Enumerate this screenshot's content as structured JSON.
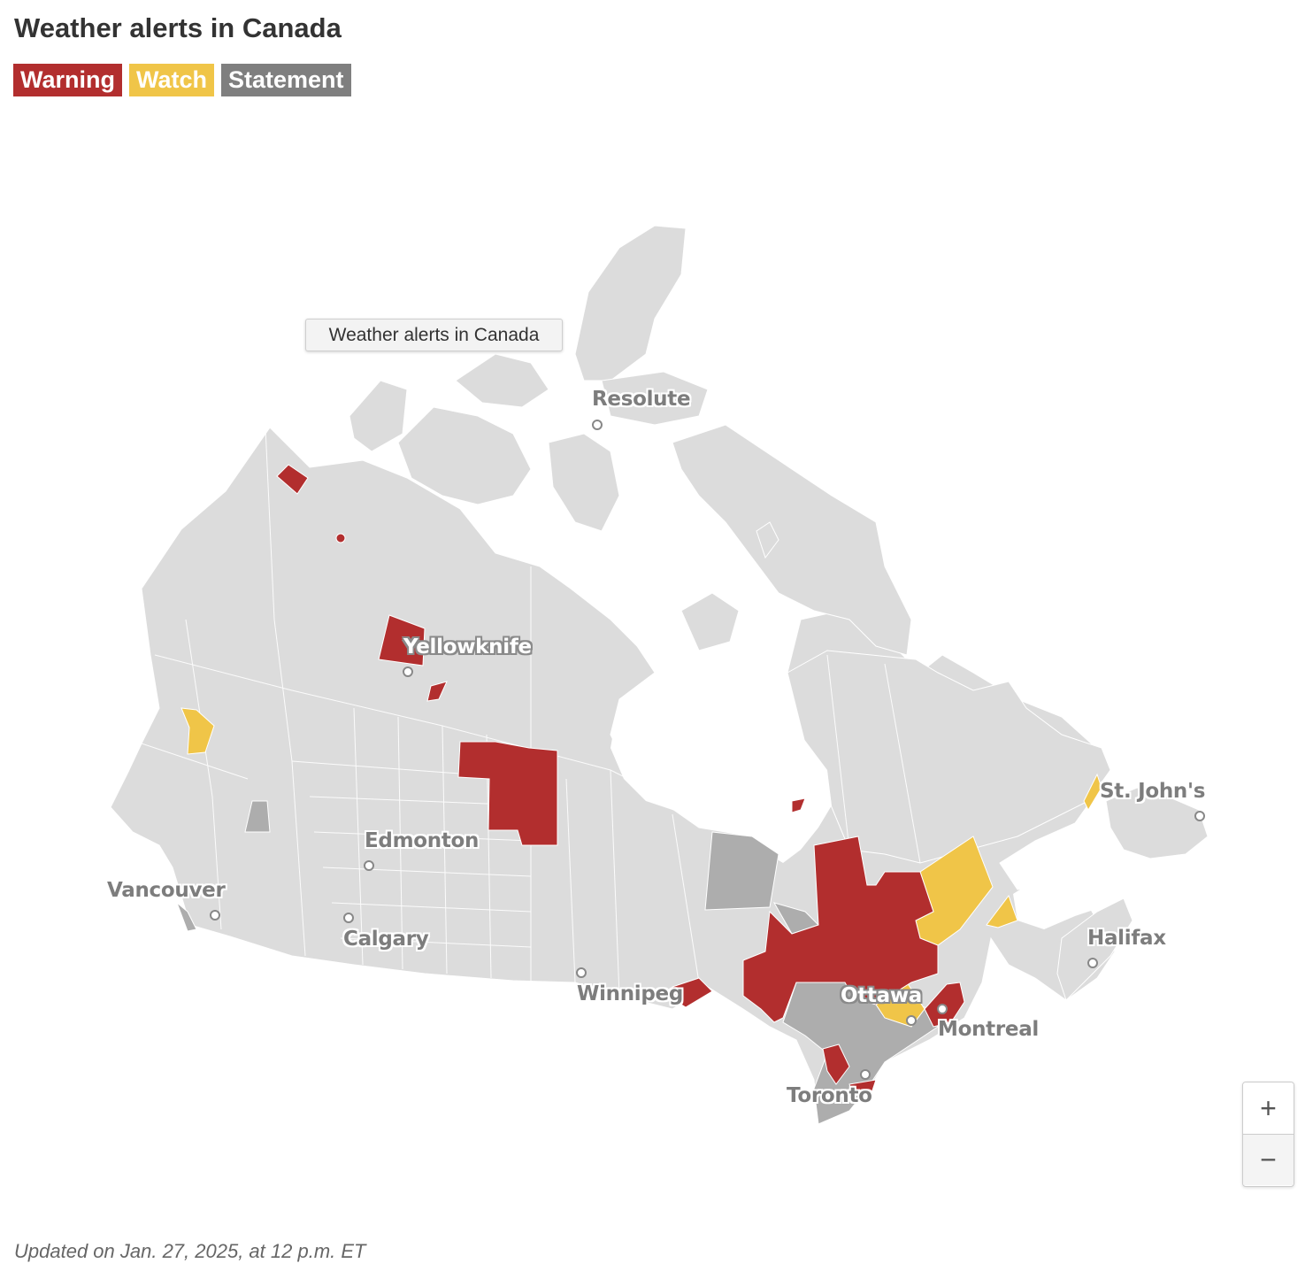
{
  "title": "Weather alerts in Canada",
  "legend": [
    {
      "label": "Warning",
      "color": "#b22e2e"
    },
    {
      "label": "Watch",
      "color": "#f0c548"
    },
    {
      "label": "Statement",
      "color": "#7f7f7f"
    }
  ],
  "tooltip": "Weather alerts in Canada",
  "map_colors": {
    "land": "#dcdcdc",
    "borders": "#ffffff",
    "warning": "#b22e2e",
    "watch": "#f0c548",
    "statement": "#adadad"
  },
  "cities": [
    {
      "name": "Resolute"
    },
    {
      "name": "Yellowknife"
    },
    {
      "name": "St. John's"
    },
    {
      "name": "Edmonton"
    },
    {
      "name": "Vancouver"
    },
    {
      "name": "Calgary"
    },
    {
      "name": "Halifax"
    },
    {
      "name": "Winnipeg"
    },
    {
      "name": "Ottawa"
    },
    {
      "name": "Montreal"
    },
    {
      "name": "Toronto"
    }
  ],
  "zoom": {
    "in_label": "+",
    "out_label": "−"
  },
  "footer": "Updated on Jan. 27, 2025, at 12 p.m. ET"
}
